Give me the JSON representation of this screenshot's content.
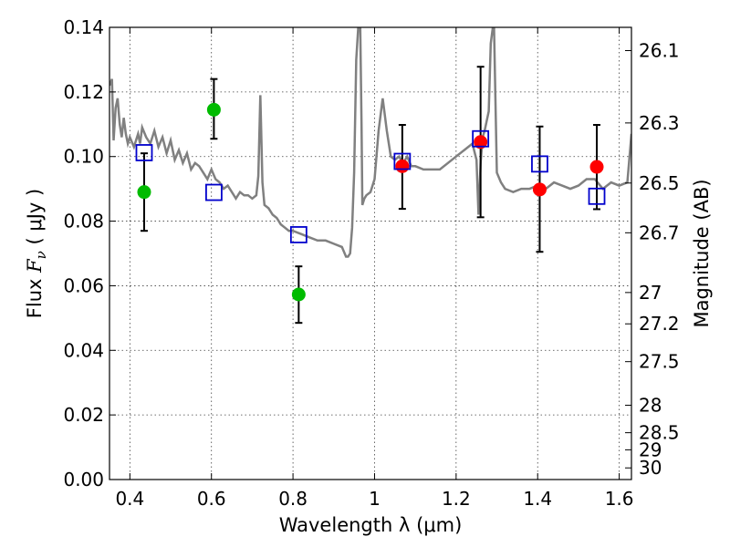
{
  "chart_data": {
    "type": "scatter",
    "xlabel": "Wavelength  λ (μm)",
    "ylabel": "Flux  F_ν  ( μJy )",
    "ylabel_parts": {
      "pre": "Flux  ",
      "sym": "F",
      "sub": "ν",
      "post": "  ( μJy )"
    },
    "y2label": "Magnitude (AB)",
    "xlim": [
      0.35,
      1.63
    ],
    "ylim": [
      0.0,
      0.14
    ],
    "xticks": [
      0.4,
      0.6,
      0.8,
      1.0,
      1.2,
      1.4,
      1.6
    ],
    "xtick_labels": [
      "0.4",
      "0.6",
      "0.8",
      "1",
      "1.2",
      "1.4",
      "1.6"
    ],
    "yticks": [
      0.0,
      0.02,
      0.04,
      0.06,
      0.08,
      0.1,
      0.12,
      0.14
    ],
    "ytick_labels": [
      "0.00",
      "0.02",
      "0.04",
      "0.06",
      "0.08",
      "0.10",
      "0.12",
      "0.14"
    ],
    "y2ticks": [
      {
        "label": "26.1",
        "flux": 0.1328
      },
      {
        "label": "26.3",
        "flux": 0.1104
      },
      {
        "label": "26.5",
        "flux": 0.0918
      },
      {
        "label": "26.7",
        "flux": 0.0764
      },
      {
        "label": "27",
        "flux": 0.0579
      },
      {
        "label": "27.2",
        "flux": 0.0482
      },
      {
        "label": "27.5",
        "flux": 0.0365
      },
      {
        "label": "28",
        "flux": 0.023
      },
      {
        "label": "28.5",
        "flux": 0.0145
      },
      {
        "label": "29",
        "flux": 0.0092
      },
      {
        "label": "30",
        "flux": 0.0036
      }
    ],
    "grid": true,
    "colors": {
      "line": "#808080",
      "green": "#00bb00",
      "red": "#ff0000",
      "blue": "#0000cc",
      "errorbar": "#000000"
    },
    "model_spectrum": {
      "x": [
        0.35,
        0.356,
        0.36,
        0.365,
        0.37,
        0.375,
        0.38,
        0.385,
        0.39,
        0.395,
        0.4,
        0.41,
        0.42,
        0.425,
        0.43,
        0.44,
        0.45,
        0.46,
        0.47,
        0.48,
        0.49,
        0.5,
        0.51,
        0.52,
        0.53,
        0.54,
        0.55,
        0.56,
        0.57,
        0.58,
        0.59,
        0.6,
        0.61,
        0.62,
        0.63,
        0.64,
        0.65,
        0.66,
        0.67,
        0.68,
        0.69,
        0.7,
        0.71,
        0.715,
        0.72,
        0.725,
        0.73,
        0.74,
        0.75,
        0.76,
        0.77,
        0.78,
        0.79,
        0.8,
        0.82,
        0.84,
        0.86,
        0.88,
        0.9,
        0.92,
        0.93,
        0.935,
        0.94,
        0.945,
        0.95,
        0.955,
        0.96,
        0.962,
        0.965,
        0.968,
        0.97,
        0.975,
        0.98,
        0.99,
        1.0,
        1.01,
        1.02,
        1.03,
        1.04,
        1.05,
        1.06,
        1.07,
        1.08,
        1.09,
        1.1,
        1.12,
        1.14,
        1.16,
        1.18,
        1.2,
        1.22,
        1.24,
        1.25,
        1.255,
        1.26,
        1.265,
        1.27,
        1.28,
        1.285,
        1.29,
        1.293,
        1.3,
        1.31,
        1.32,
        1.34,
        1.36,
        1.38,
        1.4,
        1.42,
        1.44,
        1.46,
        1.48,
        1.5,
        1.52,
        1.54,
        1.56,
        1.58,
        1.6,
        1.62,
        1.63
      ],
      "y": [
        0.122,
        0.124,
        0.105,
        0.115,
        0.118,
        0.11,
        0.106,
        0.112,
        0.107,
        0.104,
        0.106,
        0.103,
        0.107,
        0.104,
        0.109,
        0.106,
        0.104,
        0.108,
        0.103,
        0.106,
        0.101,
        0.105,
        0.099,
        0.102,
        0.098,
        0.101,
        0.096,
        0.098,
        0.097,
        0.095,
        0.093,
        0.096,
        0.093,
        0.092,
        0.09,
        0.091,
        0.089,
        0.087,
        0.089,
        0.088,
        0.088,
        0.087,
        0.088,
        0.094,
        0.119,
        0.092,
        0.085,
        0.084,
        0.082,
        0.081,
        0.079,
        0.078,
        0.077,
        0.077,
        0.076,
        0.075,
        0.074,
        0.074,
        0.073,
        0.072,
        0.069,
        0.069,
        0.07,
        0.078,
        0.095,
        0.13,
        0.14,
        0.14,
        0.14,
        0.11,
        0.085,
        0.087,
        0.088,
        0.089,
        0.093,
        0.108,
        0.118,
        0.108,
        0.1,
        0.099,
        0.1,
        0.098,
        0.1,
        0.097,
        0.097,
        0.096,
        0.096,
        0.096,
        0.098,
        0.1,
        0.102,
        0.104,
        0.099,
        0.082,
        0.098,
        0.106,
        0.108,
        0.114,
        0.135,
        0.14,
        0.14,
        0.095,
        0.092,
        0.09,
        0.089,
        0.09,
        0.09,
        0.091,
        0.09,
        0.092,
        0.091,
        0.09,
        0.091,
        0.093,
        0.093,
        0.09,
        0.092,
        0.091,
        0.092,
        0.107
      ]
    },
    "green_points": [
      {
        "x": 0.435,
        "y": 0.089,
        "yerr_low": 0.077,
        "yerr_high": 0.101
      },
      {
        "x": 0.606,
        "y": 0.1145,
        "yerr_low": 0.1055,
        "yerr_high": 0.124
      },
      {
        "x": 0.814,
        "y": 0.0573,
        "yerr_low": 0.0485,
        "yerr_high": 0.066
      }
    ],
    "red_points": [
      {
        "x": 1.068,
        "y": 0.097,
        "yerr_low": 0.0838,
        "yerr_high": 0.1098
      },
      {
        "x": 1.26,
        "y": 0.1045,
        "yerr_low": 0.0812,
        "yerr_high": 0.1278
      },
      {
        "x": 1.405,
        "y": 0.0898,
        "yerr_low": 0.0705,
        "yerr_high": 0.1093
      },
      {
        "x": 1.545,
        "y": 0.0968,
        "yerr_low": 0.0837,
        "yerr_high": 0.1098
      }
    ],
    "blue_squares": [
      {
        "x": 0.435,
        "y": 0.1012
      },
      {
        "x": 0.606,
        "y": 0.0889
      },
      {
        "x": 0.814,
        "y": 0.0758
      },
      {
        "x": 1.068,
        "y": 0.0985
      },
      {
        "x": 1.26,
        "y": 0.1055
      },
      {
        "x": 1.405,
        "y": 0.0977
      },
      {
        "x": 1.545,
        "y": 0.0877
      }
    ]
  }
}
